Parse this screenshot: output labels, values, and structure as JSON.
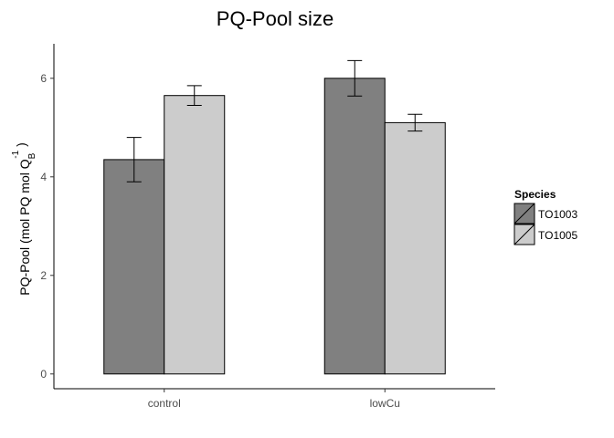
{
  "chart_data": {
    "type": "bar",
    "title": "PQ-Pool size",
    "xlabel": "",
    "ylabel": {
      "main": "PQ-Pool (mol PQ mol Q",
      "subscript": "B",
      "superscript": "-1",
      "suffix": " )"
    },
    "categories": [
      "control",
      "lowCu"
    ],
    "ylim": [
      -0.3,
      6.7
    ],
    "yticks": [
      0,
      2,
      4,
      6
    ],
    "grid": false,
    "legend": {
      "title": "Species",
      "position": "right"
    },
    "series": [
      {
        "name": "TO1003",
        "color": "#808080",
        "values": [
          4.35,
          6.0
        ],
        "errors": [
          0.45,
          0.36
        ]
      },
      {
        "name": "TO1005",
        "color": "#cccccc",
        "values": [
          5.65,
          5.1
        ],
        "errors": [
          0.2,
          0.17
        ]
      }
    ]
  }
}
